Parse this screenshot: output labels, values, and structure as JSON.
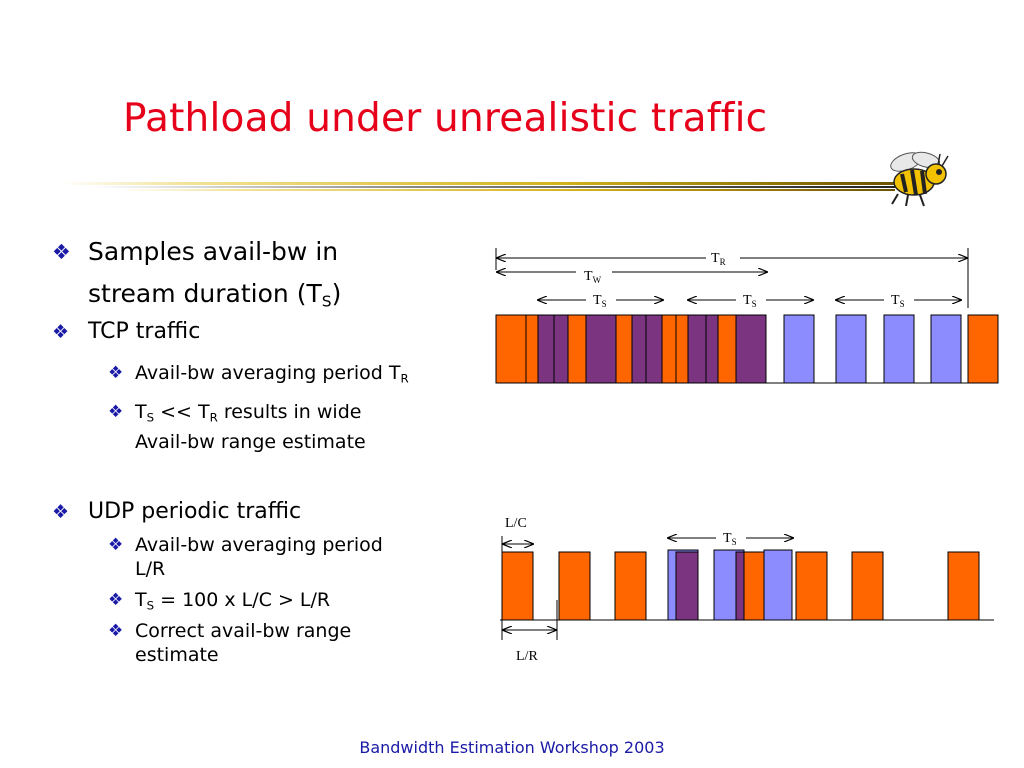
{
  "slide": {
    "title": "Pathload under unrealistic traffic",
    "footer": "Bandwidth Estimation Workshop 2003"
  },
  "bullets": {
    "b1_line1": "Samples avail-bw in",
    "b1_line2": "stream duration (T",
    "b1_sub": "S",
    "b1_tail": ")",
    "b2": "TCP traffic",
    "b2a_text": "Avail-bw averaging period T",
    "b2a_sub": "R",
    "b2b_t1": "T",
    "b2b_s1": "S",
    "b2b_mid": " << T",
    "b2b_s2": "R",
    "b2b_tail": " results in wide",
    "b2b_line2": "Avail-bw range estimate",
    "b3": "UDP periodic traffic",
    "b3a_line1": "Avail-bw averaging period",
    "b3a_line2": "L/R",
    "b3b_t": "T",
    "b3b_s": "S",
    "b3b_tail": " = 100 x L/C > L/R",
    "b3c_line1": "Correct avail-bw range",
    "b3c_line2": "estimate"
  },
  "diagram_labels": {
    "tr": "T",
    "tr_sub": "R",
    "tw": "T",
    "tw_sub": "W",
    "ts": "T",
    "ts_sub": "S",
    "lc": "L/C",
    "lr": "L/R"
  },
  "colors": {
    "title": "#e6001a",
    "bullet_glyph": "#1a1aa6",
    "cross_traffic": "#ff6600",
    "overlap": "#7a3480",
    "probe_packet": "#8c8cff",
    "footer": "#1a1aa6"
  },
  "icons": {
    "bullet": "four-diamond-bullet-icon",
    "logo": "yellow-jacket-bee-icon"
  }
}
